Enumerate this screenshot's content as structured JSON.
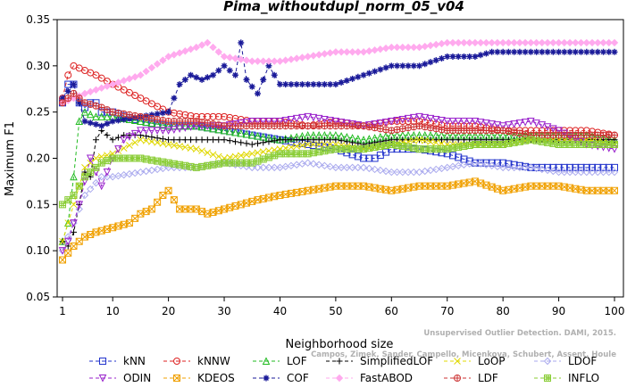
{
  "chart_data": {
    "type": "line",
    "title": "Pima_withoutdupl_norm_05_v04",
    "xlabel": "Neighborhood size",
    "ylabel": "Maximum F1",
    "xlim": [
      1,
      100
    ],
    "ylim": [
      0.05,
      0.35
    ],
    "xticks": [
      1,
      10,
      20,
      30,
      40,
      50,
      60,
      70,
      80,
      90,
      100
    ],
    "yticks": [
      0.05,
      0.1,
      0.15,
      0.2,
      0.25,
      0.3,
      0.35
    ],
    "grid": false,
    "legend_position": "bottom",
    "credit": "Campos, Zimek, Sander, Campello, Micenkova, Schubert, Assent, Houle\nUnsupervised Outlier Detection. DAMI, 2015.",
    "series": [
      {
        "name": "kNN",
        "color": "#2233cc",
        "marker": "square",
        "points": [
          [
            1,
            0.26
          ],
          [
            2,
            0.28
          ],
          [
            3,
            0.28
          ],
          [
            4,
            0.26
          ],
          [
            5,
            0.255
          ],
          [
            6,
            0.26
          ],
          [
            7,
            0.26
          ],
          [
            8,
            0.25
          ],
          [
            9,
            0.25
          ],
          [
            10,
            0.25
          ],
          [
            15,
            0.24
          ],
          [
            20,
            0.235
          ],
          [
            25,
            0.235
          ],
          [
            30,
            0.23
          ],
          [
            35,
            0.225
          ],
          [
            40,
            0.22
          ],
          [
            45,
            0.215
          ],
          [
            50,
            0.21
          ],
          [
            55,
            0.2
          ],
          [
            57,
            0.2
          ],
          [
            60,
            0.21
          ],
          [
            65,
            0.21
          ],
          [
            70,
            0.205
          ],
          [
            75,
            0.195
          ],
          [
            80,
            0.195
          ],
          [
            85,
            0.19
          ],
          [
            90,
            0.19
          ],
          [
            95,
            0.19
          ],
          [
            100,
            0.19
          ]
        ]
      },
      {
        "name": "kNNW",
        "color": "#dd2222",
        "marker": "circle",
        "points": [
          [
            1,
            0.265
          ],
          [
            2,
            0.29
          ],
          [
            3,
            0.3
          ],
          [
            5,
            0.295
          ],
          [
            7,
            0.29
          ],
          [
            10,
            0.28
          ],
          [
            15,
            0.265
          ],
          [
            20,
            0.25
          ],
          [
            25,
            0.245
          ],
          [
            30,
            0.245
          ],
          [
            35,
            0.24
          ],
          [
            40,
            0.24
          ],
          [
            45,
            0.235
          ],
          [
            50,
            0.24
          ],
          [
            55,
            0.235
          ],
          [
            60,
            0.24
          ],
          [
            65,
            0.24
          ],
          [
            70,
            0.235
          ],
          [
            75,
            0.235
          ],
          [
            80,
            0.23
          ],
          [
            85,
            0.23
          ],
          [
            90,
            0.23
          ],
          [
            95,
            0.23
          ],
          [
            100,
            0.225
          ]
        ]
      },
      {
        "name": "LOF",
        "color": "#22bb22",
        "marker": "triangle",
        "points": [
          [
            1,
            0.11
          ],
          [
            2,
            0.13
          ],
          [
            3,
            0.18
          ],
          [
            4,
            0.24
          ],
          [
            5,
            0.25
          ],
          [
            7,
            0.245
          ],
          [
            10,
            0.245
          ],
          [
            15,
            0.24
          ],
          [
            20,
            0.235
          ],
          [
            25,
            0.235
          ],
          [
            30,
            0.23
          ],
          [
            35,
            0.225
          ],
          [
            40,
            0.22
          ],
          [
            45,
            0.225
          ],
          [
            50,
            0.225
          ],
          [
            55,
            0.22
          ],
          [
            60,
            0.225
          ],
          [
            65,
            0.225
          ],
          [
            70,
            0.225
          ],
          [
            75,
            0.225
          ],
          [
            80,
            0.225
          ],
          [
            85,
            0.225
          ],
          [
            90,
            0.225
          ],
          [
            95,
            0.225
          ],
          [
            100,
            0.22
          ]
        ]
      },
      {
        "name": "SimplifiedLOF",
        "color": "#000000",
        "marker": "plus",
        "points": [
          [
            1,
            0.11
          ],
          [
            2,
            0.105
          ],
          [
            3,
            0.12
          ],
          [
            4,
            0.15
          ],
          [
            5,
            0.185
          ],
          [
            6,
            0.18
          ],
          [
            7,
            0.22
          ],
          [
            8,
            0.23
          ],
          [
            10,
            0.22
          ],
          [
            12,
            0.225
          ],
          [
            15,
            0.225
          ],
          [
            20,
            0.22
          ],
          [
            25,
            0.22
          ],
          [
            30,
            0.22
          ],
          [
            35,
            0.215
          ],
          [
            40,
            0.22
          ],
          [
            45,
            0.22
          ],
          [
            50,
            0.22
          ],
          [
            55,
            0.215
          ],
          [
            60,
            0.22
          ],
          [
            65,
            0.22
          ],
          [
            70,
            0.22
          ],
          [
            75,
            0.22
          ],
          [
            80,
            0.22
          ],
          [
            85,
            0.22
          ],
          [
            90,
            0.22
          ],
          [
            95,
            0.22
          ],
          [
            100,
            0.22
          ]
        ]
      },
      {
        "name": "LoOP",
        "color": "#e0d800",
        "marker": "x",
        "points": [
          [
            1,
            0.11
          ],
          [
            3,
            0.15
          ],
          [
            5,
            0.19
          ],
          [
            7,
            0.2
          ],
          [
            10,
            0.205
          ],
          [
            15,
            0.22
          ],
          [
            20,
            0.215
          ],
          [
            25,
            0.21
          ],
          [
            30,
            0.2
          ],
          [
            35,
            0.205
          ],
          [
            40,
            0.21
          ],
          [
            45,
            0.215
          ],
          [
            50,
            0.215
          ],
          [
            55,
            0.21
          ],
          [
            60,
            0.215
          ],
          [
            65,
            0.22
          ],
          [
            70,
            0.215
          ],
          [
            75,
            0.215
          ],
          [
            80,
            0.215
          ],
          [
            85,
            0.22
          ],
          [
            90,
            0.22
          ],
          [
            95,
            0.22
          ],
          [
            100,
            0.215
          ]
        ]
      },
      {
        "name": "LDOF",
        "color": "#aaaaee",
        "marker": "diamond",
        "points": [
          [
            1,
            0.1
          ],
          [
            3,
            0.13
          ],
          [
            5,
            0.16
          ],
          [
            8,
            0.18
          ],
          [
            10,
            0.18
          ],
          [
            15,
            0.185
          ],
          [
            20,
            0.19
          ],
          [
            25,
            0.19
          ],
          [
            30,
            0.195
          ],
          [
            35,
            0.19
          ],
          [
            40,
            0.19
          ],
          [
            45,
            0.195
          ],
          [
            50,
            0.19
          ],
          [
            55,
            0.19
          ],
          [
            60,
            0.185
          ],
          [
            65,
            0.185
          ],
          [
            70,
            0.19
          ],
          [
            75,
            0.195
          ],
          [
            80,
            0.19
          ],
          [
            85,
            0.19
          ],
          [
            90,
            0.185
          ],
          [
            95,
            0.185
          ],
          [
            100,
            0.185
          ]
        ]
      },
      {
        "name": "ODIN",
        "color": "#9922cc",
        "marker": "triangle-down",
        "points": [
          [
            1,
            0.1
          ],
          [
            2,
            0.11
          ],
          [
            4,
            0.15
          ],
          [
            6,
            0.2
          ],
          [
            8,
            0.17
          ],
          [
            10,
            0.2
          ],
          [
            12,
            0.22
          ],
          [
            15,
            0.23
          ],
          [
            20,
            0.23
          ],
          [
            25,
            0.235
          ],
          [
            30,
            0.235
          ],
          [
            35,
            0.24
          ],
          [
            40,
            0.24
          ],
          [
            45,
            0.245
          ],
          [
            50,
            0.24
          ],
          [
            55,
            0.235
          ],
          [
            60,
            0.24
          ],
          [
            65,
            0.245
          ],
          [
            70,
            0.24
          ],
          [
            75,
            0.24
          ],
          [
            80,
            0.235
          ],
          [
            85,
            0.24
          ],
          [
            90,
            0.23
          ],
          [
            95,
            0.215
          ],
          [
            100,
            0.21
          ]
        ]
      },
      {
        "name": "KDEOS",
        "color": "#f0a000",
        "marker": "square-x",
        "points": [
          [
            1,
            0.09
          ],
          [
            3,
            0.105
          ],
          [
            5,
            0.115
          ],
          [
            7,
            0.12
          ],
          [
            10,
            0.125
          ],
          [
            13,
            0.13
          ],
          [
            15,
            0.14
          ],
          [
            17,
            0.145
          ],
          [
            19,
            0.16
          ],
          [
            20,
            0.165
          ],
          [
            22,
            0.145
          ],
          [
            25,
            0.145
          ],
          [
            27,
            0.14
          ],
          [
            30,
            0.145
          ],
          [
            33,
            0.15
          ],
          [
            36,
            0.155
          ],
          [
            40,
            0.16
          ],
          [
            45,
            0.165
          ],
          [
            50,
            0.17
          ],
          [
            55,
            0.17
          ],
          [
            60,
            0.165
          ],
          [
            65,
            0.17
          ],
          [
            70,
            0.17
          ],
          [
            75,
            0.175
          ],
          [
            80,
            0.165
          ],
          [
            85,
            0.17
          ],
          [
            90,
            0.17
          ],
          [
            95,
            0.165
          ],
          [
            100,
            0.165
          ]
        ]
      },
      {
        "name": "COF",
        "color": "#1a1a99",
        "marker": "asterisk",
        "points": [
          [
            1,
            0.265
          ],
          [
            3,
            0.28
          ],
          [
            5,
            0.24
          ],
          [
            8,
            0.235
          ],
          [
            10,
            0.24
          ],
          [
            15,
            0.245
          ],
          [
            20,
            0.25
          ],
          [
            22,
            0.28
          ],
          [
            24,
            0.29
          ],
          [
            26,
            0.285
          ],
          [
            28,
            0.29
          ],
          [
            30,
            0.3
          ],
          [
            32,
            0.29
          ],
          [
            33,
            0.325
          ],
          [
            34,
            0.285
          ],
          [
            36,
            0.27
          ],
          [
            38,
            0.3
          ],
          [
            40,
            0.28
          ],
          [
            45,
            0.28
          ],
          [
            50,
            0.28
          ],
          [
            55,
            0.29
          ],
          [
            60,
            0.3
          ],
          [
            65,
            0.3
          ],
          [
            70,
            0.31
          ],
          [
            75,
            0.31
          ],
          [
            78,
            0.315
          ],
          [
            80,
            0.315
          ],
          [
            85,
            0.315
          ],
          [
            90,
            0.315
          ],
          [
            95,
            0.315
          ],
          [
            100,
            0.315
          ]
        ]
      },
      {
        "name": "FastABOD",
        "color": "#ffaaee",
        "marker": "diamond-fill",
        "points": [
          [
            1,
            0.26
          ],
          [
            5,
            0.27
          ],
          [
            10,
            0.28
          ],
          [
            15,
            0.29
          ],
          [
            20,
            0.31
          ],
          [
            25,
            0.32
          ],
          [
            27,
            0.325
          ],
          [
            30,
            0.31
          ],
          [
            35,
            0.305
          ],
          [
            40,
            0.305
          ],
          [
            45,
            0.31
          ],
          [
            50,
            0.315
          ],
          [
            55,
            0.315
          ],
          [
            60,
            0.32
          ],
          [
            65,
            0.32
          ],
          [
            70,
            0.325
          ],
          [
            75,
            0.325
          ],
          [
            80,
            0.325
          ],
          [
            85,
            0.325
          ],
          [
            90,
            0.325
          ],
          [
            95,
            0.325
          ],
          [
            100,
            0.325
          ]
        ]
      },
      {
        "name": "LDF",
        "color": "#cc3333",
        "marker": "circle-plus",
        "points": [
          [
            1,
            0.26
          ],
          [
            3,
            0.27
          ],
          [
            5,
            0.26
          ],
          [
            8,
            0.255
          ],
          [
            10,
            0.25
          ],
          [
            15,
            0.245
          ],
          [
            20,
            0.24
          ],
          [
            25,
            0.24
          ],
          [
            30,
            0.235
          ],
          [
            35,
            0.235
          ],
          [
            40,
            0.235
          ],
          [
            45,
            0.235
          ],
          [
            50,
            0.235
          ],
          [
            55,
            0.235
          ],
          [
            60,
            0.23
          ],
          [
            65,
            0.235
          ],
          [
            70,
            0.23
          ],
          [
            75,
            0.23
          ],
          [
            80,
            0.23
          ],
          [
            85,
            0.225
          ],
          [
            90,
            0.225
          ],
          [
            95,
            0.225
          ],
          [
            100,
            0.225
          ]
        ]
      },
      {
        "name": "INFLO",
        "color": "#88cc33",
        "marker": "square-hash",
        "points": [
          [
            1,
            0.15
          ],
          [
            3,
            0.16
          ],
          [
            5,
            0.18
          ],
          [
            8,
            0.195
          ],
          [
            10,
            0.2
          ],
          [
            15,
            0.2
          ],
          [
            20,
            0.195
          ],
          [
            25,
            0.19
          ],
          [
            30,
            0.195
          ],
          [
            35,
            0.195
          ],
          [
            40,
            0.205
          ],
          [
            45,
            0.205
          ],
          [
            50,
            0.21
          ],
          [
            55,
            0.21
          ],
          [
            60,
            0.215
          ],
          [
            65,
            0.21
          ],
          [
            70,
            0.21
          ],
          [
            75,
            0.215
          ],
          [
            80,
            0.215
          ],
          [
            85,
            0.22
          ],
          [
            90,
            0.215
          ],
          [
            95,
            0.215
          ],
          [
            100,
            0.215
          ]
        ]
      }
    ]
  }
}
